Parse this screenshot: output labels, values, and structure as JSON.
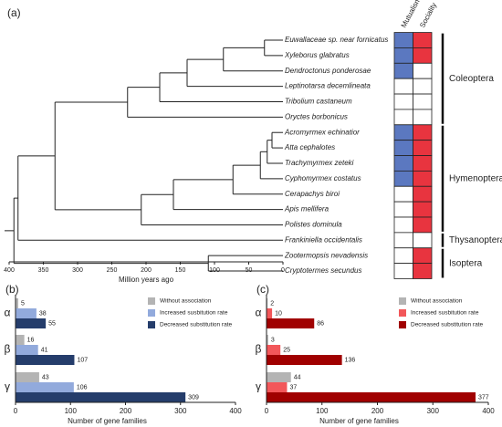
{
  "chart_data": [
    {
      "type": "tree",
      "panel_label": "(a)",
      "x_label": "Million years ago",
      "xlim": [
        400,
        0
      ],
      "xticks": [
        400,
        350,
        300,
        250,
        200,
        150,
        100,
        50,
        0
      ],
      "trait_labels": [
        "Mutualism",
        "Sociality"
      ],
      "trait_colors": [
        "#5b78c0",
        "#e8343f"
      ],
      "tree": {
        "age": 393,
        "children": [
          {
            "age": 387,
            "children": [
              {
                "age": 333,
                "children": [
                  {
                    "age": 227,
                    "children": [
                      {
                        "age": 180,
                        "children": [
                          {
                            "age": 140,
                            "children": [
                              {
                                "age": 87,
                                "children": [
                                  {
                                    "age": 27,
                                    "children": [
                                      {
                                        "name": "Euwallaceae sp. near fornicatus",
                                        "traits": [
                                          true,
                                          true
                                        ]
                                      },
                                      {
                                        "name": "Xyleborus glabratus",
                                        "traits": [
                                          true,
                                          true
                                        ]
                                      }
                                    ]
                                  },
                                  {
                                    "name": "Dendroctonus ponderosae",
                                    "traits": [
                                      true,
                                      false
                                    ]
                                  }
                                ]
                              },
                              {
                                "name": "Leptinotarsa decemlineata",
                                "traits": [
                                  false,
                                  false
                                ]
                              }
                            ]
                          },
                          {
                            "name": "Tribolium castaneum",
                            "traits": [
                              false,
                              false
                            ]
                          }
                        ]
                      },
                      {
                        "name": "Oryctes borbonicus",
                        "traits": [
                          false,
                          false
                        ]
                      }
                    ]
                  },
                  {
                    "age": 207,
                    "children": [
                      {
                        "age": 160,
                        "children": [
                          {
                            "age": 73,
                            "children": [
                              {
                                "age": 33,
                                "children": [
                                  {
                                    "age": 23,
                                    "children": [
                                      {
                                        "age": 16,
                                        "children": [
                                          {
                                            "name": "Acromyrmex echinatior",
                                            "traits": [
                                              true,
                                              true
                                            ]
                                          },
                                          {
                                            "name": "Atta cephalotes",
                                            "traits": [
                                              true,
                                              true
                                            ]
                                          }
                                        ]
                                      },
                                      {
                                        "name": "Trachymyrmex zeteki",
                                        "traits": [
                                          true,
                                          true
                                        ]
                                      }
                                    ]
                                  },
                                  {
                                    "name": "Cyphomyrmex costatus",
                                    "traits": [
                                      true,
                                      true
                                    ]
                                  }
                                ]
                              },
                              {
                                "name": "Cerapachys biroi",
                                "traits": [
                                  false,
                                  true
                                ]
                              }
                            ]
                          },
                          {
                            "name": "Apis mellifera",
                            "traits": [
                              false,
                              true
                            ]
                          }
                        ]
                      },
                      {
                        "name": "Polistes dominula",
                        "traits": [
                          false,
                          true
                        ]
                      }
                    ]
                  }
                ]
              },
              {
                "name": "Frankiniella occidentalis",
                "traits": [
                  false,
                  false
                ]
              }
            ]
          },
          {
            "age": 109,
            "children": [
              {
                "name": "Zootermopsis nevadensis",
                "traits": [
                  false,
                  true
                ]
              },
              {
                "name": "Cryptotermes secundus",
                "traits": [
                  false,
                  true
                ]
              }
            ]
          }
        ]
      },
      "clades": [
        {
          "name": "Coleoptera",
          "members": [
            "Euwallaceae sp. near fornicatus",
            "Oryctes borbonicus"
          ]
        },
        {
          "name": "Hymenoptera",
          "members": [
            "Acromyrmex echinatior",
            "Polistes dominula"
          ]
        },
        {
          "name": "Thysanoptera",
          "members": [
            "Frankiniella occidentalis",
            "Frankiniella occidentalis"
          ]
        },
        {
          "name": "Isoptera",
          "members": [
            "Zootermopsis nevadensis",
            "Cryptotermes secundus"
          ]
        }
      ]
    },
    {
      "type": "hbar",
      "panel_label": "(b)",
      "categories": [
        "α",
        "β",
        "γ"
      ],
      "series": [
        {
          "name": "Without association",
          "color": "#b4b4b4",
          "values": [
            5,
            16,
            43
          ]
        },
        {
          "name": "Increased susbitution rate",
          "color": "#92aadc",
          "values": [
            38,
            41,
            106
          ]
        },
        {
          "name": "Decreased substitution rate",
          "color": "#253d6b",
          "values": [
            55,
            107,
            309
          ]
        }
      ],
      "xlim": [
        0,
        400
      ],
      "xticks": [
        0,
        100,
        200,
        300,
        400
      ],
      "x_label": "Number of gene families"
    },
    {
      "type": "hbar",
      "panel_label": "(c)",
      "categories": [
        "α",
        "β",
        "γ"
      ],
      "series": [
        {
          "name": "Without association",
          "color": "#b4b4b4",
          "values": [
            2,
            3,
            44
          ]
        },
        {
          "name": "Increased susbitution rate",
          "color": "#f2575a",
          "values": [
            10,
            25,
            37
          ]
        },
        {
          "name": "Decreased substitution rate",
          "color": "#a00000",
          "values": [
            86,
            136,
            377
          ]
        }
      ],
      "xlim": [
        0,
        400
      ],
      "xticks": [
        0,
        100,
        200,
        300,
        400
      ],
      "x_label": "Number of gene families"
    }
  ]
}
